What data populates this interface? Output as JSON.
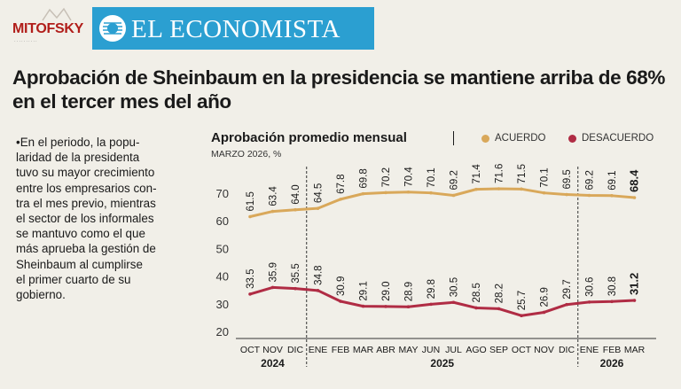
{
  "header": {
    "brand_left": "MITOFSKY",
    "brand_right": "EL ECONOMISTA",
    "headline": "Aprobación de Sheinbaum en la presidencia se mantiene arriba de 68% en el tercer mes del año"
  },
  "note": "•En el periodo, la popu-\nlaridad de la presidenta\ntuvo su mayor crecimiento\nentre los empresarios con-\ntra el mes previo, mientras\nel sector de los informales\nse mantuvo como el que\nmás aprueba la gestión de\nSheinbaum al cumplirse\nel primer cuarto de su\ngobierno.",
  "colors": {
    "acuerdo": "#d9a85a",
    "desacuerdo": "#b02c44",
    "brand_blue": "#2b9fd1",
    "brand_red": "#b11e1a"
  },
  "chart_data": {
    "type": "line",
    "title": "Aprobación promedio mensual",
    "subtitle": "MARZO 2026, %",
    "categories": [
      "OCT",
      "NOV",
      "DIC",
      "ENE",
      "FEB",
      "MAR",
      "ABR",
      "MAY",
      "JUN",
      "JUL",
      "AGO",
      "SEP",
      "OCT",
      "NOV",
      "DIC",
      "ENE",
      "FEB",
      "MAR"
    ],
    "year_groups": [
      {
        "label": "2024",
        "start": 0,
        "end": 2
      },
      {
        "label": "2025",
        "start": 3,
        "end": 14
      },
      {
        "label": "2026",
        "start": 15,
        "end": 17
      }
    ],
    "series": [
      {
        "name": "ACUERDO",
        "values": [
          61.5,
          63.4,
          64.0,
          64.5,
          67.8,
          69.8,
          70.2,
          70.4,
          70.1,
          69.2,
          71.4,
          71.6,
          71.5,
          70.1,
          69.5,
          69.2,
          69.1,
          68.4
        ],
        "labels": [
          "61.5",
          "63.4",
          "64.0",
          "64.5",
          "67.8",
          "69.8",
          "70.2",
          "70.4",
          "70.1",
          "69.2",
          "71.4",
          "71.6",
          "71.5",
          "70.1",
          "69.5",
          "69.2",
          "69.1",
          "68.4"
        ]
      },
      {
        "name": "DESACUERDO",
        "values": [
          33.5,
          35.9,
          35.5,
          34.8,
          30.9,
          29.1,
          29.0,
          28.9,
          29.8,
          30.5,
          28.5,
          28.2,
          25.7,
          26.9,
          29.7,
          30.6,
          30.8,
          31.2
        ],
        "labels": [
          "33.5",
          "35.9",
          "35.5",
          "34.8",
          "30.9",
          "29.1",
          "29.0",
          "28.9",
          "29.8",
          "30.5",
          "28.5",
          "28.2",
          "25.7",
          "26.9",
          "29.7",
          "30.6",
          "30.8",
          "31.2"
        ]
      }
    ],
    "yticks": [
      "70",
      "60",
      "50",
      "40",
      "30",
      "20"
    ],
    "ylim": [
      20,
      70
    ],
    "year_dividers_after": [
      2,
      14
    ]
  }
}
